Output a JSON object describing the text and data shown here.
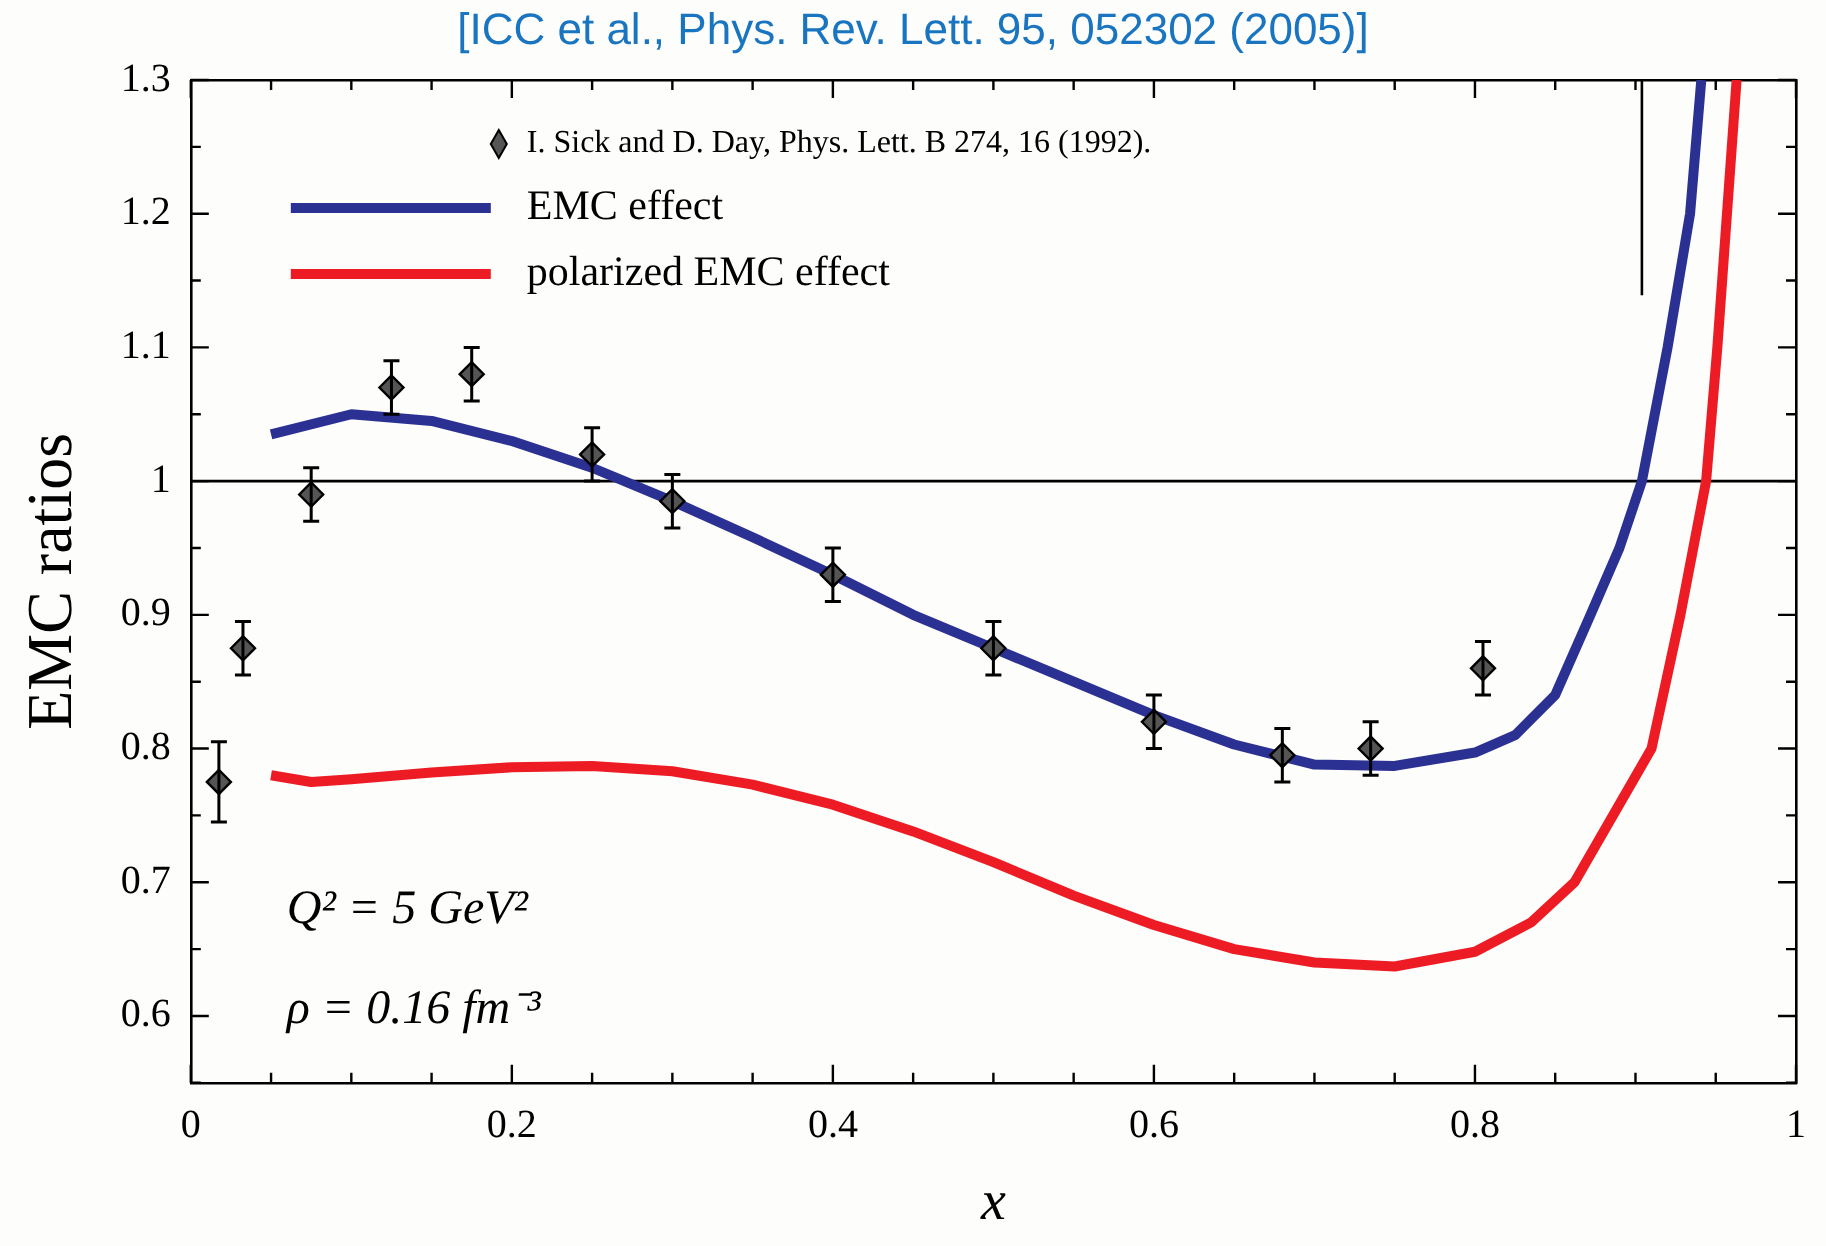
{
  "chart_data": {
    "type": "line",
    "title": "[ICC et al., Phys. Rev. Lett. 95, 052302 (2005)]",
    "xlabel": "x",
    "ylabel": "EMC ratios",
    "xlim": [
      0,
      1
    ],
    "ylim": [
      0.55,
      1.3
    ],
    "xticks": [
      0,
      {
        "value": 0.05,
        "label": null
      },
      {
        "value": 0.1,
        "label": null
      },
      {
        "value": 0.15,
        "label": null
      },
      0.2,
      {
        "value": 0.25,
        "label": null
      },
      {
        "value": 0.3,
        "label": null
      },
      {
        "value": 0.35,
        "label": null
      },
      0.4,
      {
        "value": 0.45,
        "label": null
      },
      {
        "value": 0.5,
        "label": null
      },
      {
        "value": 0.55,
        "label": null
      },
      0.6,
      {
        "value": 0.65,
        "label": null
      },
      {
        "value": 0.7,
        "label": null
      },
      {
        "value": 0.75,
        "label": null
      },
      0.8,
      {
        "value": 0.85,
        "label": null
      },
      {
        "value": 0.9,
        "label": null
      },
      {
        "value": 0.95,
        "label": null
      },
      1
    ],
    "yticks": [
      {
        "value": 0.55,
        "label": null
      },
      0.6,
      {
        "value": 0.65,
        "label": null
      },
      0.7,
      {
        "value": 0.75,
        "label": null
      },
      0.8,
      {
        "value": 0.85,
        "label": null
      },
      0.9,
      {
        "value": 0.95,
        "label": null
      },
      1,
      {
        "value": 1.05,
        "label": null
      },
      1.1,
      {
        "value": 1.15,
        "label": null
      },
      1.2,
      {
        "value": 1.25,
        "label": null
      },
      1.3
    ],
    "grid": false,
    "legend": "top left",
    "ref_lines": [
      {
        "axis": "y",
        "value": 1,
        "color": "#000000"
      }
    ],
    "annotations": [
      "Q² = 5 GeV²",
      "ρ = 0.16 fm⁻³"
    ],
    "series": [
      {
        "name": "I. Sick and D. Day, Phys. Lett. B 274, 16 (1992).",
        "type": "scatter",
        "marker": "diamond",
        "color": "#555555",
        "x": [
          0.0175,
          0.0325,
          0.075,
          0.125,
          0.175,
          0.25,
          0.3,
          0.4,
          0.5,
          0.6,
          0.68,
          0.735,
          0.805
        ],
        "values": [
          0.775,
          0.875,
          0.99,
          1.07,
          1.08,
          1.02,
          0.985,
          0.93,
          0.875,
          0.82,
          0.795,
          0.8,
          0.86
        ],
        "errors": [
          0.03,
          0.02,
          0.02,
          0.02,
          0.02,
          0.02,
          0.02,
          0.02,
          0.02,
          0.02,
          0.02,
          0.02,
          0.02
        ]
      },
      {
        "name": "EMC effect",
        "type": "line",
        "color": "#2b3192",
        "x": [
          0.05,
          0.1,
          0.15,
          0.2,
          0.25,
          0.3,
          0.35,
          0.4,
          0.45,
          0.5,
          0.55,
          0.6,
          0.65,
          0.7,
          0.75,
          0.8,
          0.825,
          0.85,
          0.872,
          0.89,
          0.904,
          0.92,
          0.934,
          0.941
        ],
        "values": [
          1.035,
          1.05,
          1.045,
          1.03,
          1.01,
          0.985,
          0.958,
          0.93,
          0.9,
          0.875,
          0.85,
          0.825,
          0.803,
          0.788,
          0.787,
          0.797,
          0.81,
          0.84,
          0.9,
          0.95,
          1.0,
          1.1,
          1.2,
          1.3
        ]
      },
      {
        "name": "polarized EMC effect",
        "type": "line",
        "color": "#ed1c24",
        "x": [
          0.05,
          0.075,
          0.1,
          0.15,
          0.2,
          0.25,
          0.3,
          0.35,
          0.4,
          0.45,
          0.5,
          0.55,
          0.6,
          0.65,
          0.7,
          0.75,
          0.8,
          0.835,
          0.862,
          0.91,
          0.928,
          0.944,
          0.951,
          0.957,
          0.963
        ],
        "values": [
          0.78,
          0.775,
          0.777,
          0.782,
          0.786,
          0.787,
          0.783,
          0.773,
          0.758,
          0.738,
          0.715,
          0.69,
          0.668,
          0.65,
          0.64,
          0.637,
          0.648,
          0.67,
          0.7,
          0.8,
          0.9,
          1.0,
          1.1,
          1.2,
          1.3
        ]
      },
      {
        "type": "line",
        "color": "#000000",
        "x": [
          0.904,
          0.904
        ],
        "values": [
          1.139,
          1.3
        ]
      }
    ]
  }
}
